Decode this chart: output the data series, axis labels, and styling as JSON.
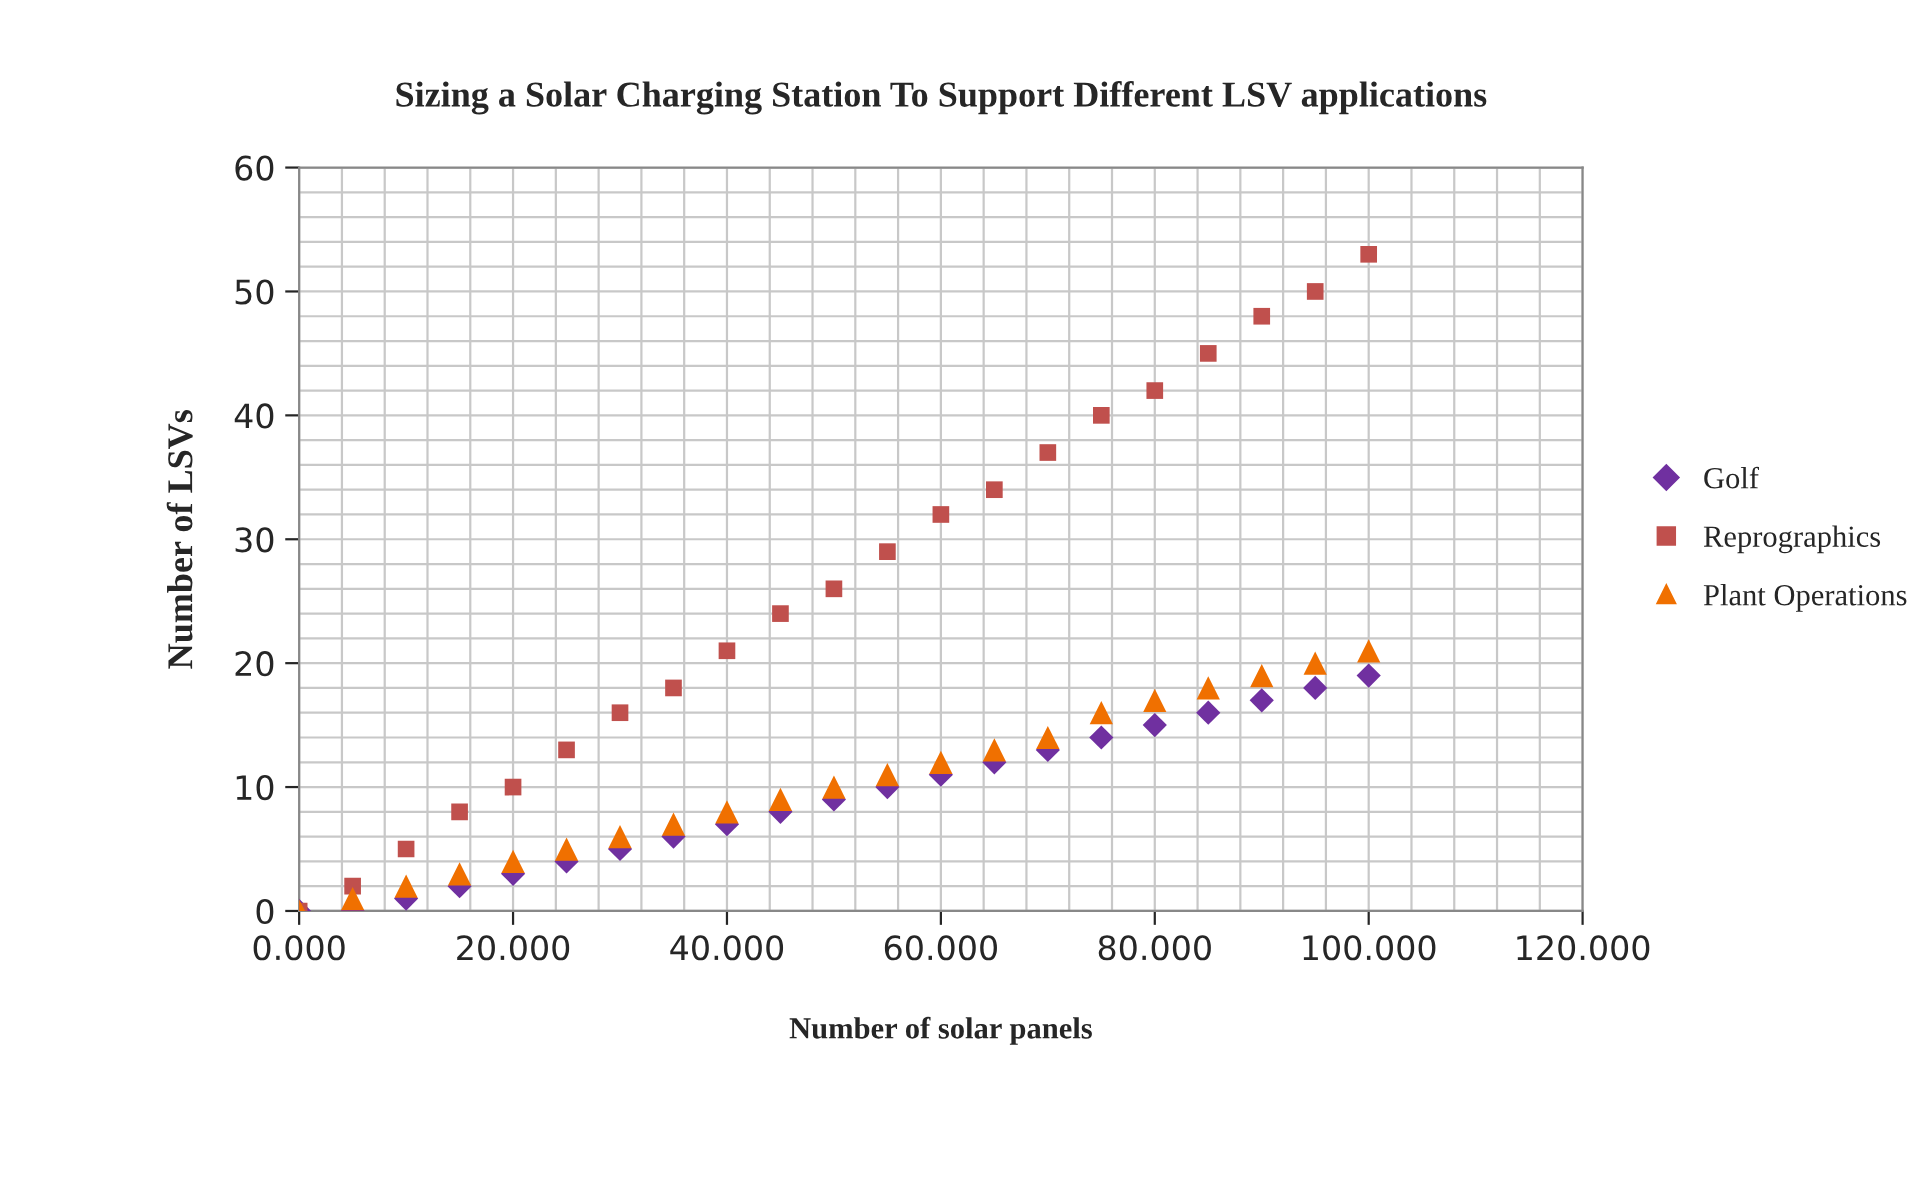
{
  "chart_data": {
    "type": "scatter",
    "title": "Sizing a Solar Charging Station To Support Different LSV applications",
    "xlabel": "Number of solar panels",
    "ylabel": "Number of LSVs",
    "x": [
      0,
      5,
      10,
      15,
      20,
      25,
      30,
      35,
      40,
      45,
      50,
      55,
      60,
      65,
      70,
      75,
      80,
      85,
      90,
      95,
      100
    ],
    "series": [
      {
        "name": "Golf",
        "color": "#7030a0",
        "marker": "diamond",
        "values": [
          0,
          0,
          1,
          2,
          3,
          4,
          5,
          6,
          7,
          8,
          9,
          10,
          11,
          12,
          13,
          14,
          15,
          16,
          17,
          18,
          19
        ]
      },
      {
        "name": "Reprographics",
        "color": "#c0504d",
        "marker": "square",
        "values": [
          0,
          2,
          5,
          8,
          10,
          13,
          16,
          18,
          21,
          24,
          26,
          29,
          32,
          34,
          37,
          40,
          42,
          45,
          48,
          50,
          53
        ]
      },
      {
        "name": "Plant Operations",
        "color": "#f07000",
        "marker": "triangle",
        "values": [
          0,
          1,
          2,
          3,
          4,
          5,
          6,
          7,
          8,
          9,
          10,
          11,
          12,
          13,
          14,
          16,
          17,
          18,
          19,
          20,
          21
        ]
      }
    ],
    "xlim": [
      0,
      120
    ],
    "ylim": [
      0,
      60
    ],
    "xticks": [
      {
        "value": 0,
        "label": "0.000"
      },
      {
        "value": 20,
        "label": "20.000"
      },
      {
        "value": 40,
        "label": "40.000"
      },
      {
        "value": 60,
        "label": "60.000"
      },
      {
        "value": 80,
        "label": "80.000"
      },
      {
        "value": 100,
        "label": "100.000"
      },
      {
        "value": 120,
        "label": "120.000"
      }
    ],
    "yticks": [
      0,
      10,
      20,
      30,
      40,
      50,
      60
    ],
    "grid": true,
    "legend": "right"
  }
}
